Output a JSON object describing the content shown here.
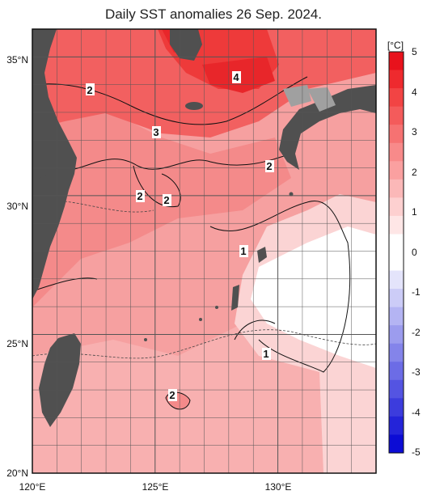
{
  "title": "Daily SST anomalies 26 Sep. 2024.",
  "map": {
    "lat_labels": [
      "35°N",
      "30°N",
      "25°N",
      "20°N"
    ],
    "lon_labels": [
      "120°E",
      "125°E",
      "130°E"
    ],
    "lon_range": [
      120,
      134
    ],
    "lat_range": [
      20,
      36
    ],
    "contour_labels": [
      "2",
      "4",
      "3",
      "2",
      "2",
      "2",
      "1",
      "1",
      "2"
    ],
    "land_color": "#505050",
    "shallow_color": "#a0a0a0"
  },
  "colorbar": {
    "unit": "[°C]",
    "ticks": [
      "5",
      "4",
      "3",
      "2",
      "1",
      "0",
      "-1",
      "-2",
      "-3",
      "-4",
      "-5"
    ],
    "colors_top_to_bottom": [
      "#e8121c",
      "#ee2a2e",
      "#f24444",
      "#f45b5b",
      "#f67272",
      "#f88a8a",
      "#faa0a0",
      "#fbb8b8",
      "#fdd0d0",
      "#fee6e6",
      "#ffffff",
      "#ffffff",
      "#e4e4fb",
      "#ccccf7",
      "#b4b4f3",
      "#9c9cee",
      "#8484ea",
      "#6c6ce6",
      "#5454e2",
      "#3c3cdd",
      "#2424d9",
      "#0c0cd5"
    ]
  }
}
